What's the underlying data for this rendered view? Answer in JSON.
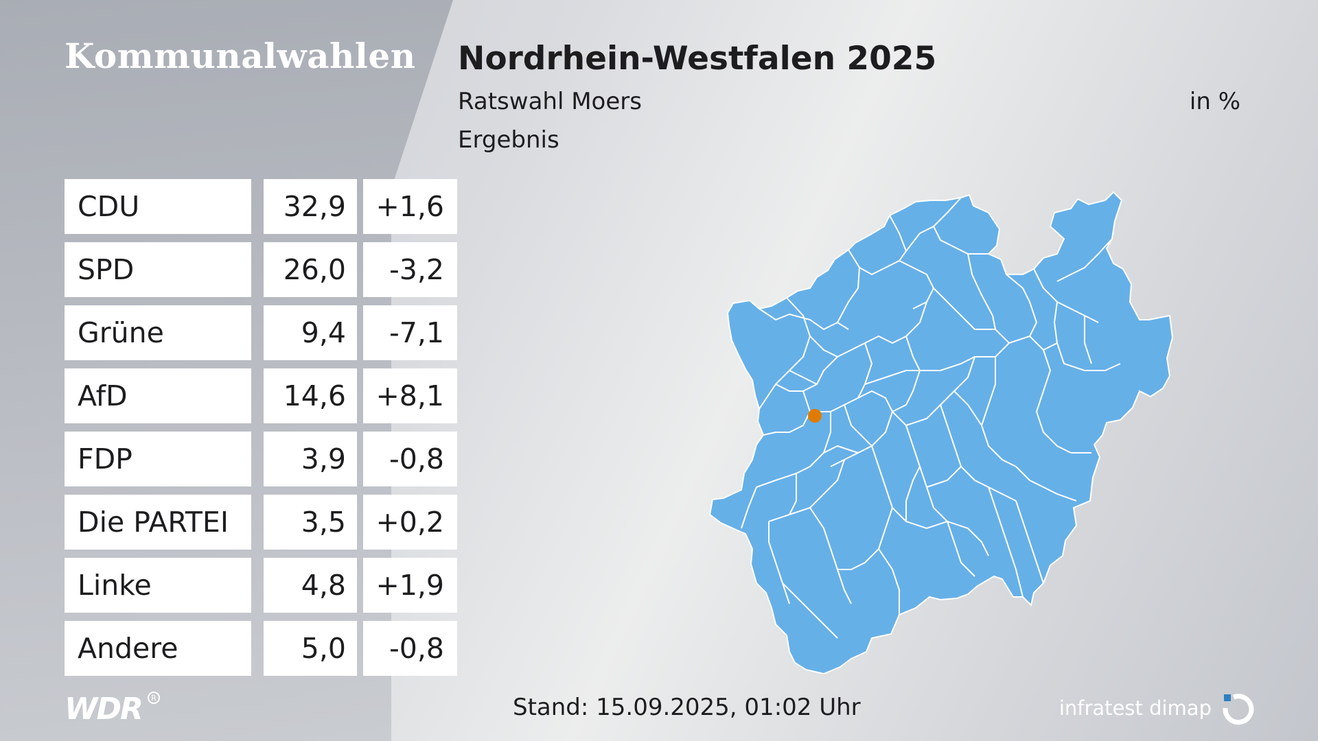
{
  "header": {
    "brand": "Kommunalwahlen",
    "title": "Nordrhein-Westfalen 2025",
    "subtitle": "Ratswahl Moers",
    "subtitle2": "Ergebnis",
    "unit": "in %"
  },
  "results": [
    {
      "party": "CDU",
      "share": "32,9",
      "change": "+1,6"
    },
    {
      "party": "SPD",
      "share": "26,0",
      "change": "-3,2"
    },
    {
      "party": "Grüne",
      "share": "9,4",
      "change": "-7,1"
    },
    {
      "party": "AfD",
      "share": "14,6",
      "change": "+8,1"
    },
    {
      "party": "FDP",
      "share": "3,9",
      "change": "-0,8"
    },
    {
      "party": "Die PARTEI",
      "share": "3,5",
      "change": "+0,2"
    },
    {
      "party": "Linke",
      "share": "4,8",
      "change": "+1,9"
    },
    {
      "party": "Andere",
      "share": "5,0",
      "change": "-0,8"
    }
  ],
  "map": {
    "region": "Nordrhein-Westfalen",
    "highlight": "Moers",
    "fill_color": "#66b0e8",
    "highlight_color": "#e07b00"
  },
  "footer": {
    "stand": "Stand: 15.09.2025, 01:02 Uhr",
    "logo_left": "WDR",
    "logo_right": "infratest dimap"
  }
}
